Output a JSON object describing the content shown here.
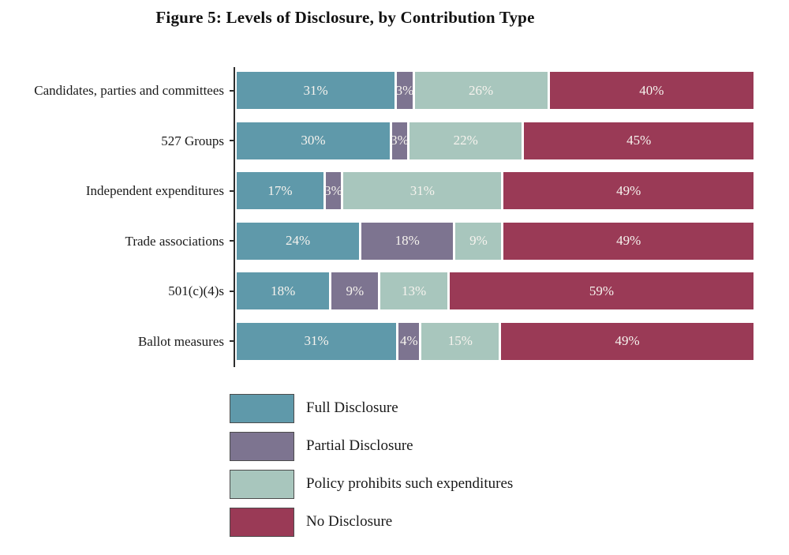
{
  "page": {
    "background": "#ffffff"
  },
  "chart_data": {
    "type": "bar",
    "stacked": true,
    "orientation": "horizontal",
    "title": "Figure 5: Levels of Disclosure, by Contribution Type",
    "categories": [
      "Candidates, parties and committees",
      "527 Groups",
      "Independent expenditures",
      "Trade associations",
      "501(c)(4)s",
      "Ballot measures"
    ],
    "series": [
      {
        "name": "Full Disclosure",
        "color": "#5f99aa",
        "values": [
          31,
          30,
          17,
          24,
          18,
          31
        ],
        "labels": [
          "31%",
          "30%",
          "17%",
          "24%",
          "18%",
          "31%"
        ]
      },
      {
        "name": "Partial Disclosure",
        "color": "#7d7490",
        "values": [
          3,
          3,
          3,
          18,
          9,
          4
        ],
        "labels": [
          "3%",
          "3%",
          "3%",
          "18%",
          "9%",
          "4%"
        ]
      },
      {
        "name": "Policy prohibits such expenditures",
        "color": "#a8c6bd",
        "values": [
          26,
          22,
          31,
          9,
          13,
          15
        ],
        "labels": [
          "26%",
          "22%",
          "31%",
          "9%",
          "13%",
          "15%"
        ]
      },
      {
        "name": "No Disclosure",
        "color": "#9a3a56",
        "values": [
          40,
          45,
          49,
          49,
          59,
          49
        ],
        "labels": [
          "40%",
          "45%",
          "49%",
          "49%",
          "59%",
          "49%"
        ]
      }
    ],
    "x_range": [
      0,
      100
    ],
    "grid": false,
    "legend_position": "bottom-left",
    "value_label_color": "#f6f3ee",
    "axis_color": "#2d2d2d"
  }
}
